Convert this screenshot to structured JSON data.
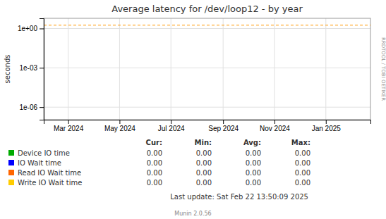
{
  "chart_data": {
    "type": "line",
    "title": "Average latency for /dev/loop12 - by year",
    "y_label": "seconds",
    "log": "y",
    "grid": true,
    "xlim": [
      1706745600,
      1740268800
    ],
    "ylim": [
      1.1e-07,
      6.0
    ],
    "xticks": [
      {
        "value": 1709251200,
        "label": "Mar 2024"
      },
      {
        "value": 1714521600,
        "label": "May 2024"
      },
      {
        "value": 1719792000,
        "label": "Jul 2024"
      },
      {
        "value": 1725148800,
        "label": "Sep 2024"
      },
      {
        "value": 1730419200,
        "label": "Nov 2024"
      },
      {
        "value": 1735689600,
        "label": "Jan 2025"
      }
    ],
    "yticks": [
      {
        "value": 1e-06,
        "label": "1e-06"
      },
      {
        "value": 0.001,
        "label": "1e-03"
      },
      {
        "value": 1.0,
        "label": "1e+00"
      }
    ],
    "hlines": [
      {
        "value": 1.8,
        "color": "#ff9900",
        "line_style": "dashed"
      }
    ],
    "table": {
      "headers": [
        "Cur:",
        "Min:",
        "Avg:",
        "Max:"
      ],
      "rows": [
        {
          "name": "Device IO time",
          "color": "#00aa00",
          "values": [
            0,
            0,
            0,
            0
          ],
          "value_labels": [
            "0.00",
            "0.00",
            "0.00",
            "0.00"
          ]
        },
        {
          "name": "IO Wait time",
          "color": "#0000ff",
          "values": [
            0,
            0,
            0,
            0
          ],
          "value_labels": [
            "0.00",
            "0.00",
            "0.00",
            "0.00"
          ]
        },
        {
          "name": "Read IO Wait time",
          "color": "#ff6600",
          "values": [
            0,
            0,
            0,
            0
          ],
          "value_labels": [
            "0.00",
            "0.00",
            "0.00",
            "0.00"
          ]
        },
        {
          "name": "Write IO Wait time",
          "color": "#ffcc00",
          "values": [
            0,
            0,
            0,
            0
          ],
          "value_labels": [
            "0.00",
            "0.00",
            "0.00",
            "0.00"
          ]
        }
      ]
    },
    "annotations": [
      {
        "text": "Last update: Sat Feb 22 13:50:09 2025"
      },
      {
        "text": "Munin 2.0.56"
      },
      {
        "text": "RRDTOOL / TOBI OETIKER"
      }
    ]
  }
}
